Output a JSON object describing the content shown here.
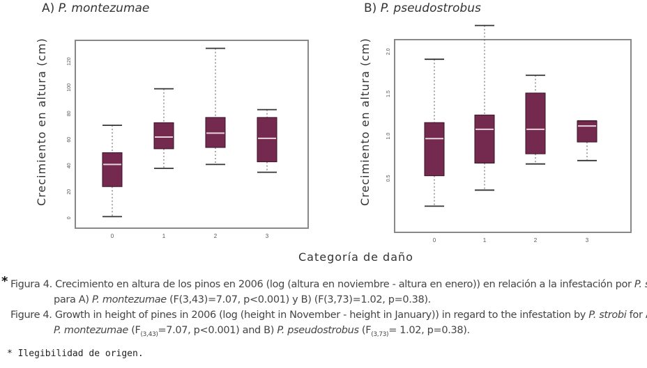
{
  "panels": {
    "a_prefix": "A) ",
    "a_species": "P. montezumae",
    "b_prefix": "B) ",
    "b_species": "P. pseudostrobus"
  },
  "axis": {
    "ylabel": "Crecimiento en altura (cm)",
    "xlabel": "Categoría de daño"
  },
  "caption": {
    "star": "*",
    "es_1a": "Figura 4. Crecimiento en altura de los pinos en 2006 (log (altura en noviembre - altura en enero)) en relación a la infestación por ",
    "es_1b": "P. strobi",
    "es_2a": "para A) ",
    "es_2b": "P. montezumae",
    "es_2c": " (F(3,43)=7.07, p<0.001) y B) (F(3,73)=1.02, p=0.38).",
    "en_1a": "Figure 4. Growth in height of pines in 2006 (log (height in November - height in January)) in regard to the infestation by ",
    "en_1b": "P. strobi",
    "en_1c": " for A)",
    "en_2a": "P. montezumae",
    "en_2b": " (F",
    "en_2c": "(3,43)",
    "en_2d": "=7.07, p<0.001) and B) ",
    "en_2e": "P. pseudostrobus",
    "en_2f": " (F",
    "en_2g": "(3,73)",
    "en_2h": "= 1.02, p=0.38)."
  },
  "footnote": "* Ilegibilidad de origen.",
  "colors": {
    "box_fill": "#732a4e",
    "median": "#e8d4dc",
    "frame": "#888888",
    "whisker": "#555555"
  },
  "chart_data": [
    {
      "type": "box",
      "title": "A) P. montezumae",
      "xlabel": "Categoría de daño",
      "ylabel": "Crecimiento en altura (cm)",
      "categories": [
        "0",
        "1",
        "2",
        "3"
      ],
      "ylim": [
        -2,
        134
      ],
      "yticks": [
        0,
        20,
        40,
        60,
        80,
        100,
        120
      ],
      "boxes": [
        {
          "category": "0",
          "min": 1,
          "q1": 24,
          "median": 41,
          "q3": 50,
          "max": 71
        },
        {
          "category": "1",
          "min": 38,
          "q1": 53,
          "median": 62,
          "q3": 73,
          "max": 99
        },
        {
          "category": "2",
          "min": 41,
          "q1": 54,
          "median": 65,
          "q3": 77,
          "max": 130
        },
        {
          "category": "3",
          "min": 35,
          "q1": 43,
          "median": 61,
          "q3": 77,
          "max": 83
        }
      ],
      "grid": false
    },
    {
      "type": "box",
      "title": "B) P. pseudostrobus",
      "xlabel": "Categoría de daño",
      "ylabel": "Crecimiento en altura (cm)",
      "categories": [
        "0",
        "1",
        "2",
        "3"
      ],
      "ylim": [
        0,
        2.2
      ],
      "yticks": [
        0.5,
        1,
        1.5,
        2
      ],
      "ytick_labels": [
        "0.5",
        "1.0",
        "1.5",
        "2.0"
      ],
      "log_scale": true,
      "boxes": [
        {
          "category": "0",
          "min": 0.17,
          "q1": 0.53,
          "median": 0.97,
          "q3": 1.16,
          "max": 1.91
        },
        {
          "category": "1",
          "min": 0.36,
          "q1": 0.68,
          "median": 1.08,
          "q3": 1.25,
          "max": 2.31
        },
        {
          "category": "2",
          "min": 0.67,
          "q1": 0.79,
          "median": 1.08,
          "q3": 1.51,
          "max": 1.72
        },
        {
          "category": "3",
          "min": 0.71,
          "q1": 0.93,
          "median": 1.12,
          "q3": 1.18,
          "max": 1.18
        }
      ],
      "grid": false
    }
  ]
}
